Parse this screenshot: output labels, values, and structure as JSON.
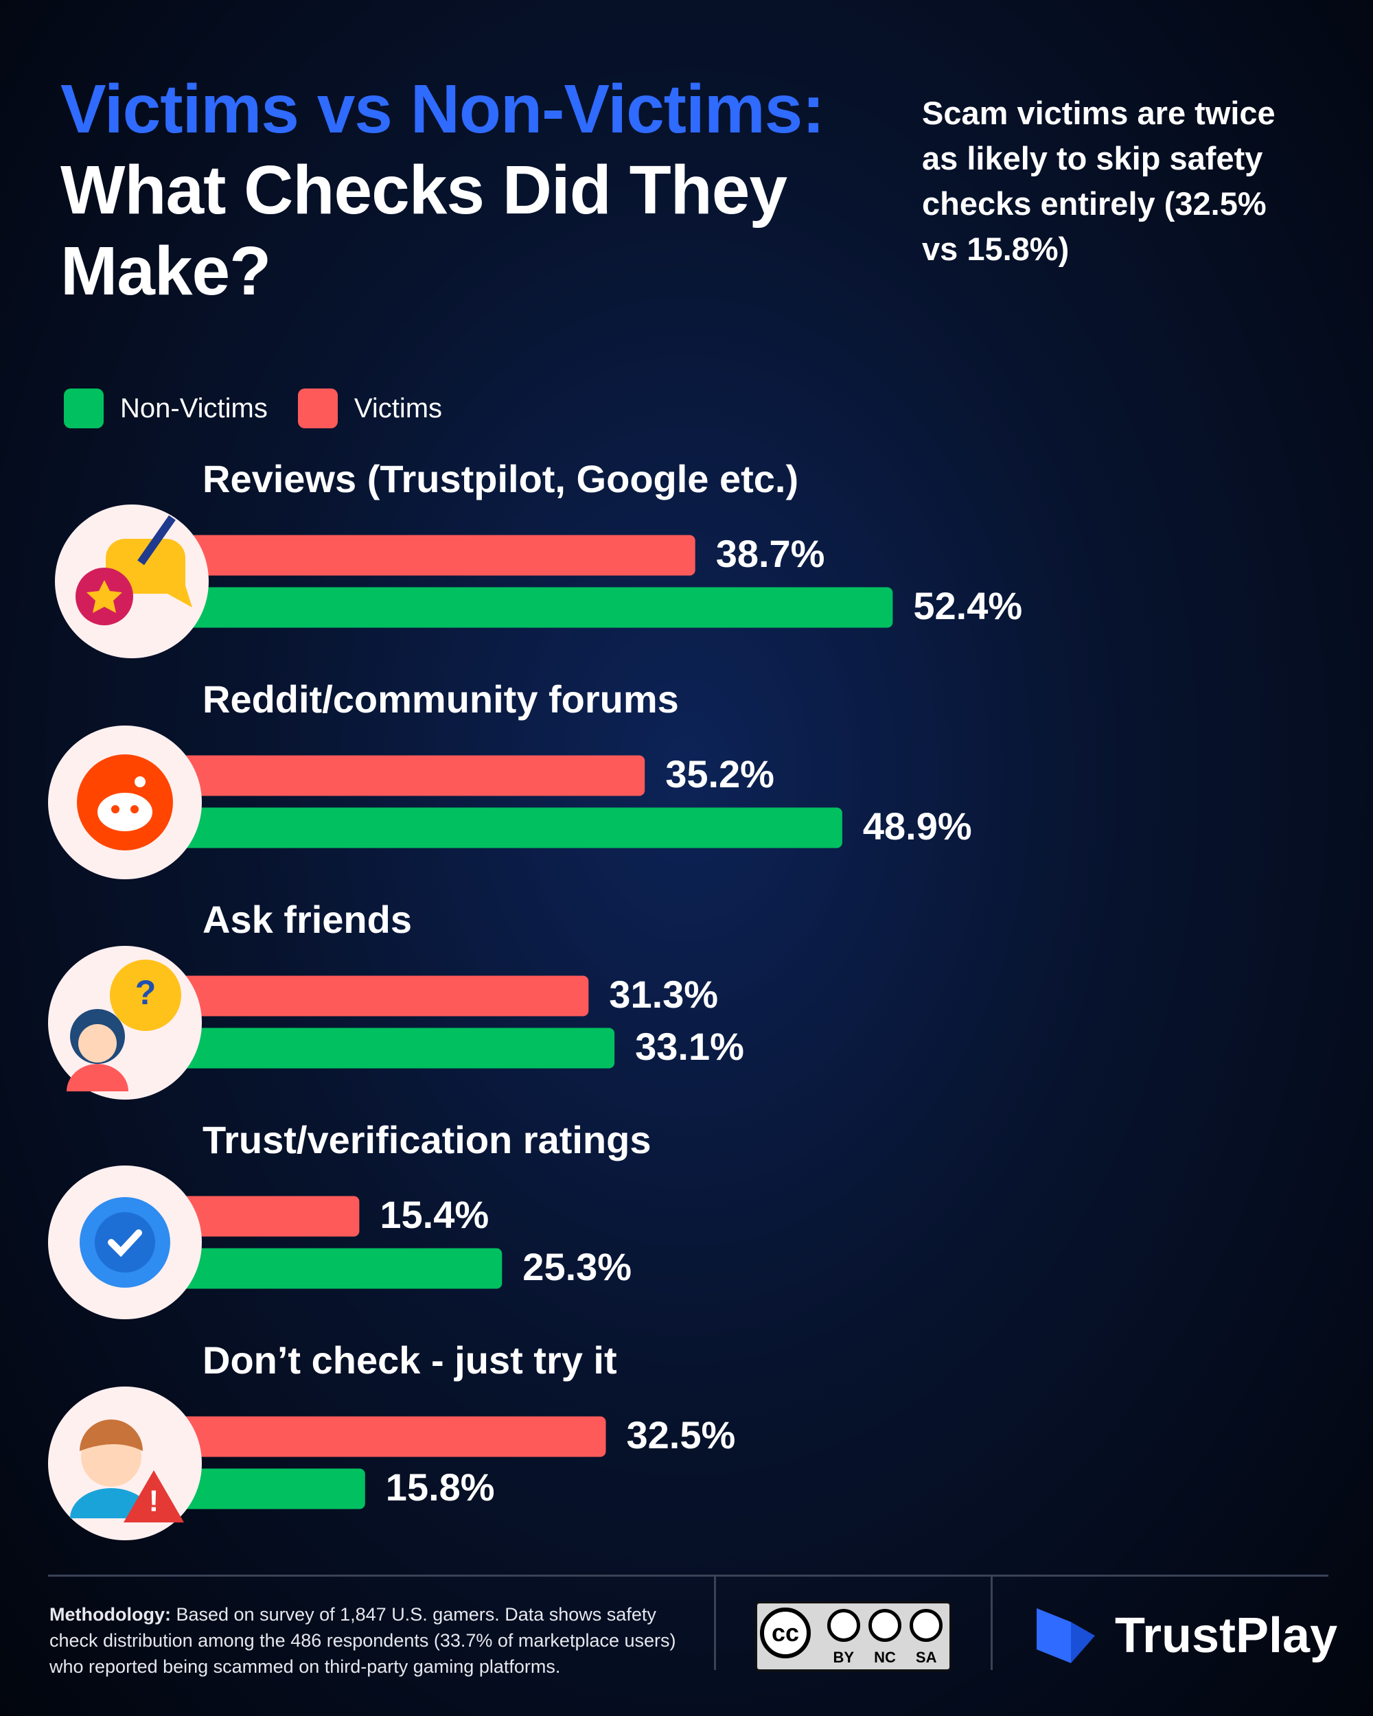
{
  "chart_data": {
    "type": "bar",
    "title_highlight": "Victims vs Non-Victims:",
    "title": "What Checks Did They Make?",
    "annotation": "Scam victims are twice as likely to skip safety checks entirely (32.5% vs 15.8%)",
    "categories": [
      "Reviews (Trustpilot, Google etc.)",
      "Reddit/community forums",
      "Ask friends",
      "Trust/verification ratings",
      "Don’t check - just try it"
    ],
    "series": [
      {
        "name": "Non-Victims",
        "color": "#00c060",
        "values": [
          52.4,
          48.9,
          33.1,
          25.3,
          15.8
        ],
        "value_labels": [
          "52.4%",
          "48.9%",
          "33.1%",
          "25.3%",
          "15.8%"
        ]
      },
      {
        "name": "Victims",
        "color": "#ff5a5a",
        "values": [
          38.7,
          35.2,
          31.3,
          15.4,
          32.5
        ],
        "value_labels": [
          "38.7%",
          "35.2%",
          "31.3%",
          "15.4%",
          "32.5%"
        ]
      }
    ]
  },
  "footer": {
    "methodology_label": "Methodology:",
    "methodology_text": "Based on survey of 1,847 U.S. gamers. Data shows safety check distribution among the 486 respondents (33.7% of marketplace users) who reported being scammed on third-party gaming platforms.",
    "license_symbol": "cc",
    "license_terms": [
      "BY",
      "NC",
      "SA"
    ],
    "brand": "TrustPlay"
  }
}
